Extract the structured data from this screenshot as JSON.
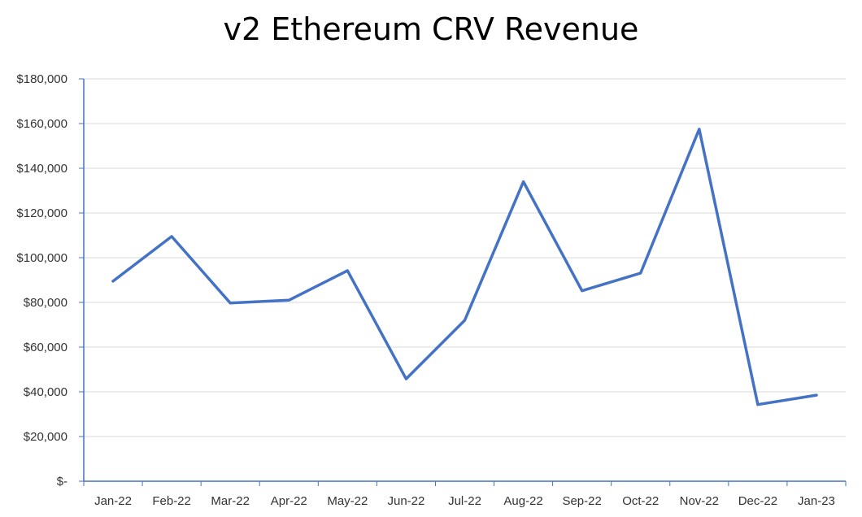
{
  "chart_data": {
    "type": "line",
    "title": "v2 Ethereum CRV Revenue",
    "xlabel": "",
    "ylabel": "",
    "categories": [
      "Jan-22",
      "Feb-22",
      "Mar-22",
      "Apr-22",
      "May-22",
      "Jun-22",
      "Jul-22",
      "Aug-22",
      "Sep-22",
      "Oct-22",
      "Nov-22",
      "Dec-22",
      "Jan-23"
    ],
    "series": [
      {
        "values": [
          89500,
          109500,
          79700,
          81000,
          94200,
          45800,
          72000,
          134000,
          85200,
          93100,
          157500,
          34300,
          38500
        ]
      }
    ],
    "ylim": [
      0,
      180000
    ],
    "yticks": [
      0,
      20000,
      40000,
      60000,
      80000,
      100000,
      120000,
      140000,
      160000,
      180000
    ],
    "ytick_labels": [
      "$-",
      "$20,000",
      "$40,000",
      "$60,000",
      "$80,000",
      "$100,000",
      "$120,000",
      "$140,000",
      "$160,000",
      "$180,000"
    ],
    "grid": true,
    "legend": "none",
    "colors": {
      "line": "#4472C4",
      "grid": "#D9D9D9",
      "axis": "#4472C4"
    }
  }
}
